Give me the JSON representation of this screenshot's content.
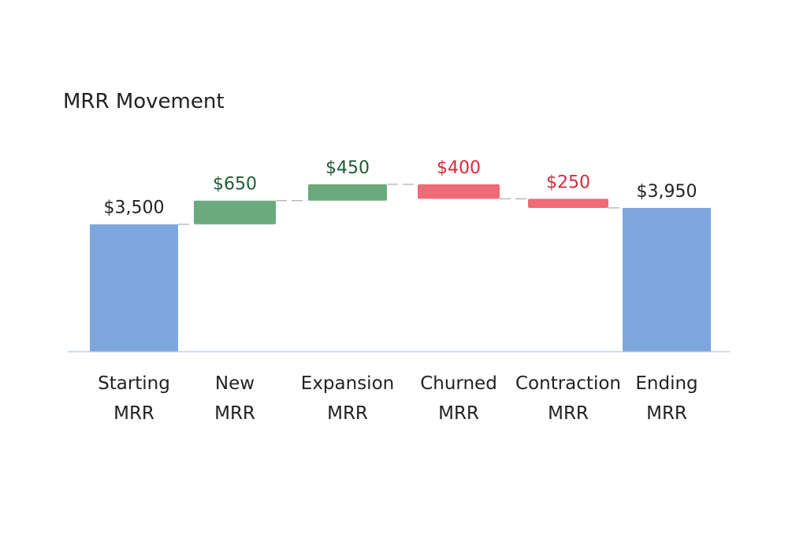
{
  "chart_data": {
    "type": "bar",
    "subtype": "waterfall",
    "title": "MRR Movement",
    "xlabel": "",
    "ylabel": "",
    "ylim": [
      0,
      4600
    ],
    "grid": false,
    "legend": "none",
    "categories": [
      [
        "Starting",
        "MRR"
      ],
      [
        "New",
        "MRR"
      ],
      [
        "Expansion",
        "MRR"
      ],
      [
        "Churned",
        "MRR"
      ],
      [
        "Contraction",
        "MRR"
      ],
      [
        "Ending",
        "MRR"
      ]
    ],
    "bars": [
      {
        "kind": "total",
        "start": 0,
        "end": 3500,
        "label": "$3,500"
      },
      {
        "kind": "increase",
        "start": 3500,
        "end": 4150,
        "label": "$650"
      },
      {
        "kind": "increase",
        "start": 4150,
        "end": 4600,
        "label": "$450"
      },
      {
        "kind": "decrease",
        "start": 4600,
        "end": 4200,
        "label": "$400"
      },
      {
        "kind": "decrease",
        "start": 4200,
        "end": 3950,
        "label": "$250"
      },
      {
        "kind": "total",
        "start": 0,
        "end": 3950,
        "label": "$3,950"
      }
    ],
    "colors": {
      "total": "#7ea6de",
      "increase": "#6aaa7c",
      "decrease": "#f06a77",
      "increase_label": "#1e5c32",
      "decrease_label": "#d9293c",
      "total_label": "#222222",
      "axis": "#b9d0ee",
      "connector": "#9a9a9a"
    }
  }
}
